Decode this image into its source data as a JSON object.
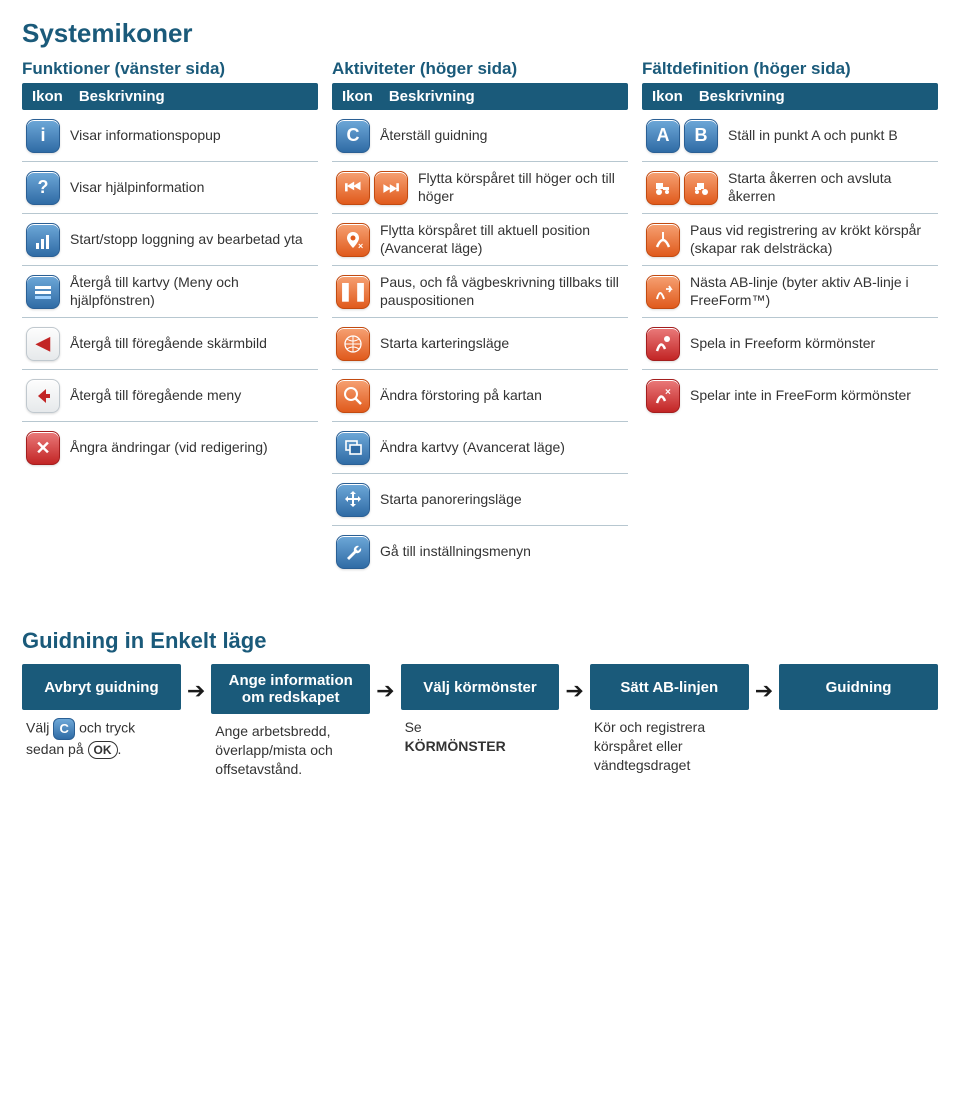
{
  "title": "Systemikoner",
  "columns": [
    {
      "title": "Funktioner (vänster sida)",
      "head": [
        "Ikon",
        "Beskrivning"
      ],
      "rows": [
        {
          "icons": [
            {
              "kind": "blue",
              "glyph": "i"
            }
          ],
          "desc": "Visar informationspopup"
        },
        {
          "icons": [
            {
              "kind": "blue",
              "glyph": "?"
            }
          ],
          "desc": "Visar hjälpinformation"
        },
        {
          "icons": [
            {
              "kind": "blue",
              "svg": "bars"
            }
          ],
          "desc": "Start/stopp loggning av bearbetad yta"
        },
        {
          "icons": [
            {
              "kind": "blue",
              "svg": "rows"
            }
          ],
          "desc": "Återgå till kartvy (Meny och hjälpfönstren)"
        },
        {
          "icons": [
            {
              "kind": "white",
              "glyph": "◀"
            }
          ],
          "desc": "Återgå till föregående skärmbild"
        },
        {
          "icons": [
            {
              "kind": "white",
              "svg": "backarrow"
            }
          ],
          "desc": "Återgå till föregående meny"
        },
        {
          "icons": [
            {
              "kind": "red",
              "glyph": "✕"
            }
          ],
          "desc": "Ångra ändringar (vid redigering)"
        }
      ]
    },
    {
      "title": "Aktiviteter (höger sida)",
      "head": [
        "Ikon",
        "Beskrivning"
      ],
      "rows": [
        {
          "icons": [
            {
              "kind": "blue",
              "glyph": "C"
            }
          ],
          "desc": "Återställ guidning"
        },
        {
          "icons": [
            {
              "kind": "orange",
              "glyph": "⏮"
            },
            {
              "kind": "orange",
              "glyph": "⏭"
            }
          ],
          "desc": "Flytta körspåret till höger och till höger"
        },
        {
          "icons": [
            {
              "kind": "orange",
              "svg": "pinx"
            }
          ],
          "desc": "Flytta körspåret till aktuell position (Avancerat läge)"
        },
        {
          "icons": [
            {
              "kind": "orange",
              "glyph": "❚❚"
            }
          ],
          "desc": "Paus, och få vägbeskrivning tillbaks till pauspositionen"
        },
        {
          "icons": [
            {
              "kind": "orange",
              "svg": "globe"
            }
          ],
          "desc": "Starta karteringsläge"
        },
        {
          "icons": [
            {
              "kind": "orange",
              "svg": "zoom"
            }
          ],
          "desc": "Ändra förstoring på kartan"
        },
        {
          "icons": [
            {
              "kind": "blue",
              "svg": "layers"
            }
          ],
          "desc": "Ändra kartvy (Avancerat läge)"
        },
        {
          "icons": [
            {
              "kind": "blue",
              "svg": "pan"
            }
          ],
          "desc": "Starta panoreringsläge"
        },
        {
          "icons": [
            {
              "kind": "blue",
              "svg": "wrench"
            }
          ],
          "desc": "Gå till inställningsmenyn"
        }
      ]
    },
    {
      "title": "Fältdefinition (höger sida)",
      "head": [
        "Ikon",
        "Beskrivning"
      ],
      "rows": [
        {
          "icons": [
            {
              "kind": "blue",
              "glyph": "A"
            },
            {
              "kind": "blue",
              "glyph": "B"
            }
          ],
          "desc": "Ställ in punkt A och punkt B"
        },
        {
          "icons": [
            {
              "kind": "orange",
              "svg": "tractor"
            },
            {
              "kind": "orange",
              "svg": "tractor2"
            }
          ],
          "desc": "Starta åkerren och avsluta åkerren"
        },
        {
          "icons": [
            {
              "kind": "orange",
              "svg": "curve"
            }
          ],
          "desc": "Paus vid registrering av krökt körspår (skapar rak delsträcka)"
        },
        {
          "icons": [
            {
              "kind": "orange",
              "svg": "next"
            }
          ],
          "desc": "Nästa AB-linje (byter aktiv AB-linje i FreeForm™)"
        },
        {
          "icons": [
            {
              "kind": "red",
              "svg": "recpath"
            }
          ],
          "desc": "Spela in Freeform körmönster"
        },
        {
          "icons": [
            {
              "kind": "red",
              "svg": "stoppath"
            }
          ],
          "desc": "Spelar inte in FreeForm körmönster"
        }
      ]
    }
  ],
  "section2": {
    "title": "Guidning in Enkelt läge",
    "steps": [
      {
        "head": "Avbryt guidning",
        "body_html": "Välj <span class='inline-ic'>C</span> och tryck sedan på <span class='ok-pill'>OK</span>."
      },
      {
        "head": "Ange information om redskapet",
        "body_html": "Ange arbetsbredd, överlapp/mista och offsetavstånd."
      },
      {
        "head": "Välj körmönster",
        "body_html": "Se<br><strong>KÖRMÖNSTER</strong>"
      },
      {
        "head": "Sätt AB-linjen",
        "body_html": "Kör och registrera körspåret eller vändtegsdraget"
      },
      {
        "head": "Guidning",
        "body_html": ""
      }
    ]
  },
  "colors": {
    "brand": "#1a5a7a",
    "row_border": "#b7c7d0"
  }
}
